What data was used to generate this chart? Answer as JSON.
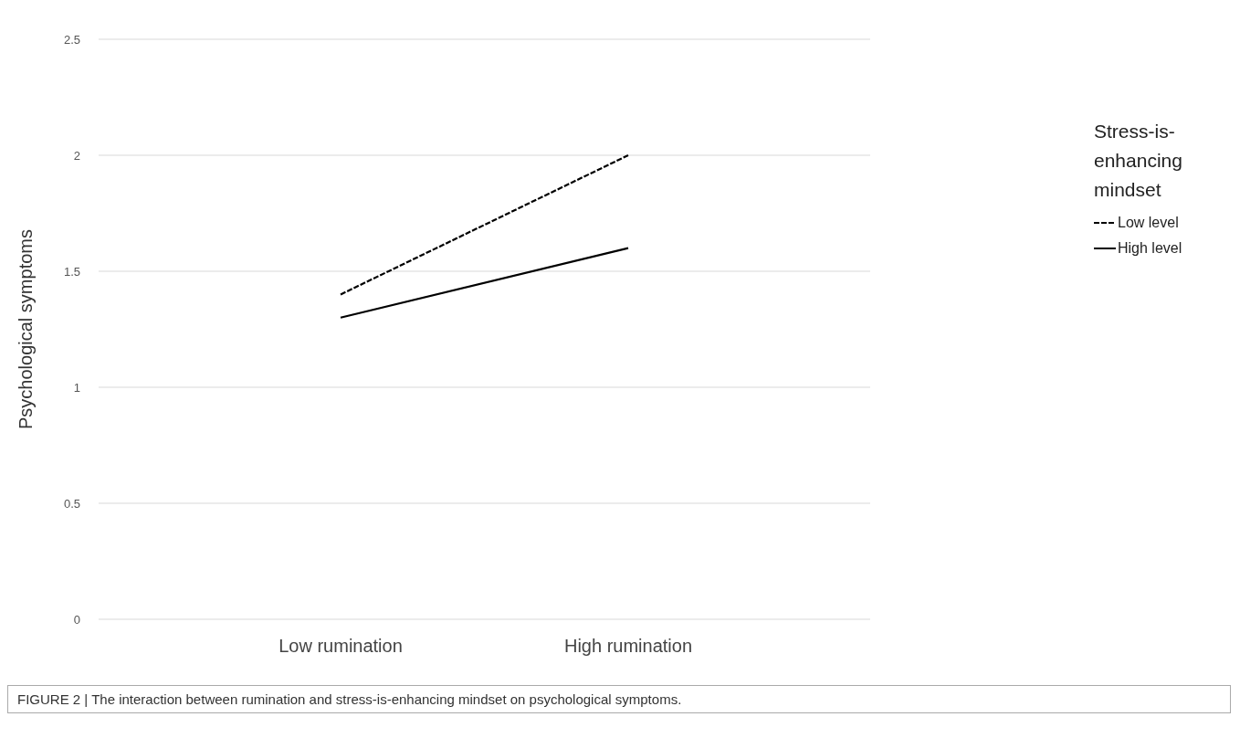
{
  "chart_data": {
    "type": "line",
    "ylabel": "Psychological symptoms",
    "legend_title": "Stress-is-enhancing mindset",
    "categories": [
      "Low rumination",
      "High rumination"
    ],
    "series": [
      {
        "name": "Low level",
        "color": "#000000",
        "values": [
          1.4,
          2.0
        ],
        "line_style": "dashed"
      },
      {
        "name": "High level",
        "color": "#000000",
        "values": [
          1.3,
          1.6
        ],
        "line_style": "solid"
      }
    ],
    "ylim": [
      0,
      2.5
    ],
    "yticks": [
      0,
      0.5,
      1,
      1.5,
      2,
      2.5
    ],
    "grid": "y",
    "legend": "right",
    "marker": "none",
    "annotations": [
      "FIGURE 2 | The interaction between rumination and stress-is-enhancing mindset on psychological symptoms."
    ]
  }
}
